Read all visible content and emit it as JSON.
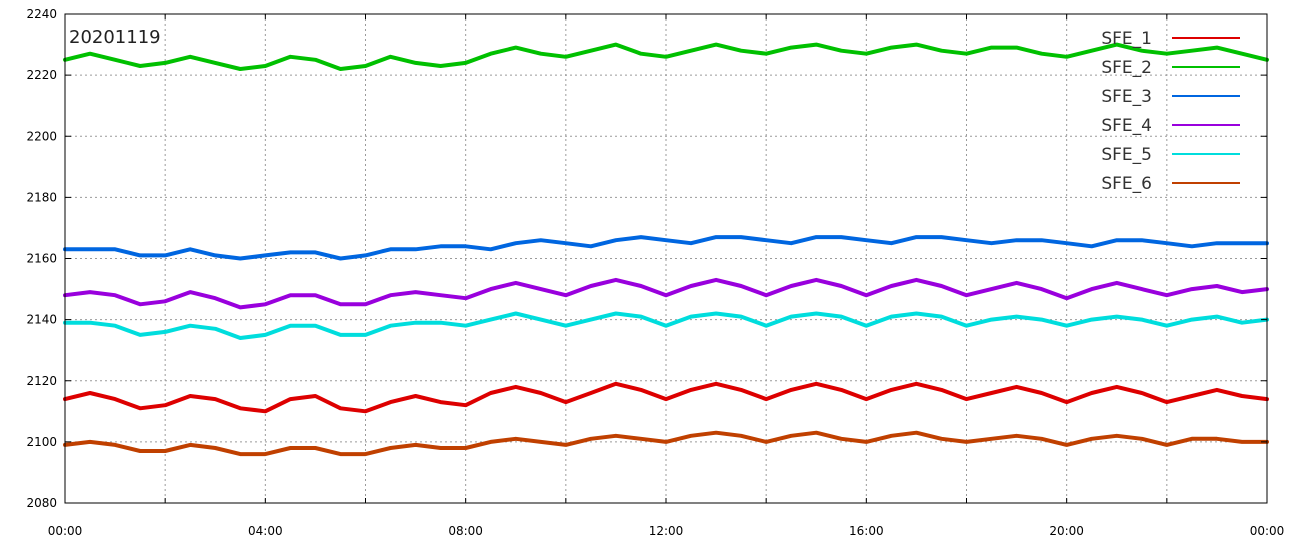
{
  "chart_data": {
    "type": "line",
    "title": "",
    "annotation": "20201119",
    "xlabel": "",
    "ylabel": "",
    "xlim": [
      0,
      24
    ],
    "ylim": [
      2080,
      2240
    ],
    "x_ticks": [
      {
        "value": 0,
        "label": "00:00"
      },
      {
        "value": 4,
        "label": "04:00"
      },
      {
        "value": 8,
        "label": "08:00"
      },
      {
        "value": 12,
        "label": "12:00"
      },
      {
        "value": 16,
        "label": "16:00"
      },
      {
        "value": 20,
        "label": "20:00"
      },
      {
        "value": 24,
        "label": "00:00"
      }
    ],
    "y_ticks": [
      2080,
      2100,
      2120,
      2140,
      2160,
      2180,
      2200,
      2220,
      2240
    ],
    "grid": true,
    "legend_position": "top-right",
    "x": [
      0,
      0.5,
      1,
      1.5,
      2,
      2.5,
      3,
      3.5,
      4,
      4.5,
      5,
      5.5,
      6,
      6.5,
      7,
      7.5,
      8,
      8.5,
      9,
      9.5,
      10,
      10.5,
      11,
      11.5,
      12,
      12.5,
      13,
      13.5,
      14,
      14.5,
      15,
      15.5,
      16,
      16.5,
      17,
      17.5,
      18,
      18.5,
      19,
      19.5,
      20,
      20.5,
      21,
      21.5,
      22,
      22.5,
      23,
      23.5,
      24
    ],
    "series": [
      {
        "name": "SFE_1",
        "color": "#dd0000",
        "values": [
          2114,
          2116,
          2114,
          2111,
          2112,
          2115,
          2114,
          2111,
          2110,
          2114,
          2115,
          2111,
          2110,
          2113,
          2115,
          2113,
          2112,
          2116,
          2118,
          2116,
          2113,
          2116,
          2119,
          2117,
          2114,
          2117,
          2119,
          2117,
          2114,
          2117,
          2119,
          2117,
          2114,
          2117,
          2119,
          2117,
          2114,
          2116,
          2118,
          2116,
          2113,
          2116,
          2118,
          2116,
          2113,
          2115,
          2117,
          2115,
          2114
        ]
      },
      {
        "name": "SFE_2",
        "color": "#00c000",
        "values": [
          2225,
          2227,
          2225,
          2223,
          2224,
          2226,
          2224,
          2222,
          2223,
          2226,
          2225,
          2222,
          2223,
          2226,
          2224,
          2223,
          2224,
          2227,
          2229,
          2227,
          2226,
          2228,
          2230,
          2227,
          2226,
          2228,
          2230,
          2228,
          2227,
          2229,
          2230,
          2228,
          2227,
          2229,
          2230,
          2228,
          2227,
          2229,
          2229,
          2227,
          2226,
          2228,
          2230,
          2228,
          2227,
          2228,
          2229,
          2227,
          2225
        ]
      },
      {
        "name": "SFE_3",
        "color": "#0066e0",
        "values": [
          2163,
          2163,
          2163,
          2161,
          2161,
          2163,
          2161,
          2160,
          2161,
          2162,
          2162,
          2160,
          2161,
          2163,
          2163,
          2164,
          2164,
          2163,
          2165,
          2166,
          2165,
          2164,
          2166,
          2167,
          2166,
          2165,
          2167,
          2167,
          2166,
          2165,
          2167,
          2167,
          2166,
          2165,
          2167,
          2167,
          2166,
          2165,
          2166,
          2166,
          2165,
          2164,
          2166,
          2166,
          2165,
          2164,
          2165,
          2165,
          2165
        ]
      },
      {
        "name": "SFE_4",
        "color": "#9900dd",
        "values": [
          2148,
          2149,
          2148,
          2145,
          2146,
          2149,
          2147,
          2144,
          2145,
          2148,
          2148,
          2145,
          2145,
          2148,
          2149,
          2148,
          2147,
          2150,
          2152,
          2150,
          2148,
          2151,
          2153,
          2151,
          2148,
          2151,
          2153,
          2151,
          2148,
          2151,
          2153,
          2151,
          2148,
          2151,
          2153,
          2151,
          2148,
          2150,
          2152,
          2150,
          2147,
          2150,
          2152,
          2150,
          2148,
          2150,
          2151,
          2149,
          2150
        ]
      },
      {
        "name": "SFE_5",
        "color": "#00dddd",
        "values": [
          2139,
          2139,
          2138,
          2135,
          2136,
          2138,
          2137,
          2134,
          2135,
          2138,
          2138,
          2135,
          2135,
          2138,
          2139,
          2139,
          2138,
          2140,
          2142,
          2140,
          2138,
          2140,
          2142,
          2141,
          2138,
          2141,
          2142,
          2141,
          2138,
          2141,
          2142,
          2141,
          2138,
          2141,
          2142,
          2141,
          2138,
          2140,
          2141,
          2140,
          2138,
          2140,
          2141,
          2140,
          2138,
          2140,
          2141,
          2139,
          2140
        ]
      },
      {
        "name": "SFE_6",
        "color": "#c04000",
        "values": [
          2099,
          2100,
          2099,
          2097,
          2097,
          2099,
          2098,
          2096,
          2096,
          2098,
          2098,
          2096,
          2096,
          2098,
          2099,
          2098,
          2098,
          2100,
          2101,
          2100,
          2099,
          2101,
          2102,
          2101,
          2100,
          2102,
          2103,
          2102,
          2100,
          2102,
          2103,
          2101,
          2100,
          2102,
          2103,
          2101,
          2100,
          2101,
          2102,
          2101,
          2099,
          2101,
          2102,
          2101,
          2099,
          2101,
          2101,
          2100,
          2100
        ]
      }
    ]
  }
}
